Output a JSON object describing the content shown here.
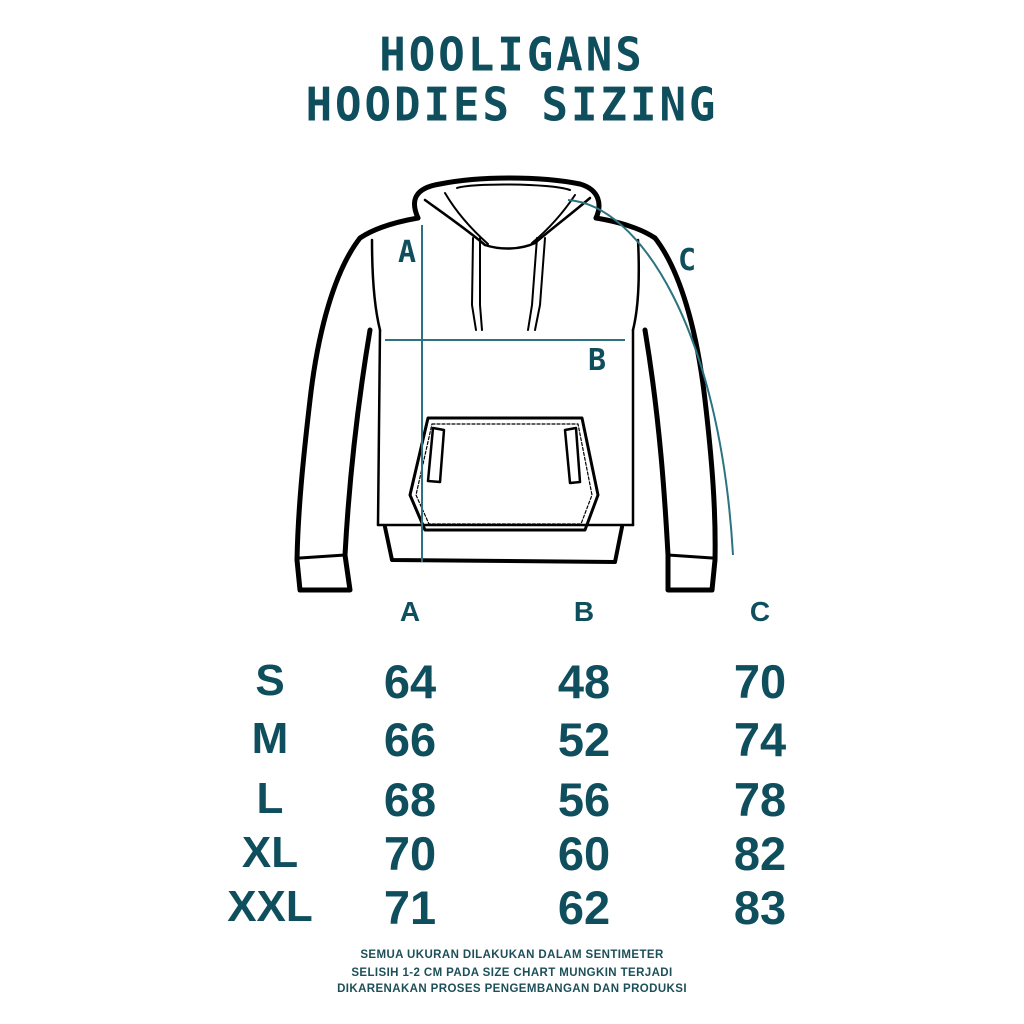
{
  "title": {
    "line1": "HOOLIGANS",
    "line2": "HOODIES SIZING"
  },
  "diagram": {
    "labels": {
      "a": "A",
      "b": "B",
      "c": "C"
    },
    "measure_color": "#2b7380",
    "outline_color": "#000000"
  },
  "table": {
    "columns": [
      "A",
      "B",
      "C"
    ],
    "rows": [
      {
        "size": "S",
        "values": [
          "64",
          "48",
          "70"
        ]
      },
      {
        "size": "M",
        "values": [
          "66",
          "52",
          "74"
        ]
      },
      {
        "size": "L",
        "values": [
          "68",
          "56",
          "78"
        ]
      },
      {
        "size": "XL",
        "values": [
          "70",
          "60",
          "82"
        ]
      },
      {
        "size": "XXL",
        "values": [
          "71",
          "62",
          "83"
        ]
      }
    ]
  },
  "footer": {
    "line1": "SEMUA UKURAN DILAKUKAN DALAM SENTIMETER",
    "line2": "SELISIH 1-2 CM PADA SIZE CHART MUNGKIN TERJADI",
    "line3": "DIKARENAKAN PROSES PENGEMBANGAN DAN PRODUKSI"
  },
  "colors": {
    "accent": "#0f4f5d"
  }
}
